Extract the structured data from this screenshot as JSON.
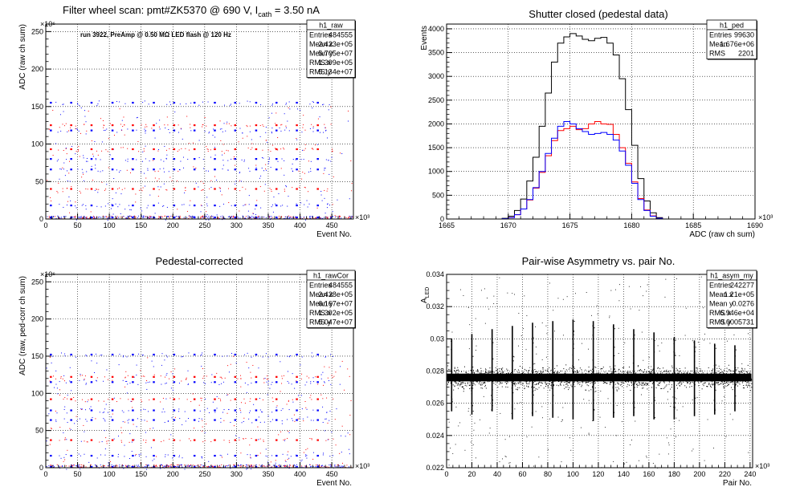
{
  "panels": [
    {
      "id": "raw",
      "title": "Filter wheel scan: pmt#ZK5370 @   690 V, I",
      "title_sub": "cath",
      "title_tail": " = 3.50 nA",
      "annotation": "run 3922, PreAmp @ 0.50 MΩ LED flash @  120 Hz",
      "xlabel": "Event No.",
      "ylabel": "ADC (raw ch sum)",
      "x_exponent": "×10³",
      "y_exponent": "×10⁶",
      "stats": {
        "name": "h1_raw",
        "rows": [
          [
            "Entries",
            "484555"
          ],
          [
            "Mean x",
            "2.423e+05"
          ],
          [
            "Mean y",
            "5.705e+07"
          ],
          [
            "RMS x",
            "1.399e+05"
          ],
          [
            "RMS y",
            "5.134e+07"
          ]
        ]
      }
    },
    {
      "id": "ped",
      "title": "Shutter closed (pedestal data)",
      "xlabel": "ADC (raw ch sum)",
      "ylabel": "Events",
      "x_exponent": "×10³",
      "stats": {
        "name": "h1_ped",
        "rows": [
          [
            "Entries",
            "99630"
          ],
          [
            "Mean",
            "1.676e+06"
          ],
          [
            "RMS",
            "2201"
          ]
        ]
      }
    },
    {
      "id": "cor",
      "title": "Pedestal-corrected",
      "xlabel": "Event No.",
      "ylabel": "ADC (raw, ped-corr ch sum)",
      "x_exponent": "×10³",
      "y_exponent": "×10⁶",
      "stats": {
        "name": "h1_rawCor",
        "rows": [
          [
            "Entries",
            "484555"
          ],
          [
            "Mean x",
            "2.428e+05"
          ],
          [
            "Mean y",
            "6.167e+07"
          ],
          [
            "RMS x",
            "1.392e+05"
          ],
          [
            "RMS y",
            "5.047e+07"
          ]
        ]
      }
    },
    {
      "id": "asym",
      "title": "Pair-wise Asymmetry vs. pair No.",
      "xlabel": "Pair No.",
      "ylabel": "A",
      "ylabel_sub": "LED",
      "x_exponent": "×10³",
      "stats": {
        "name": "h1_asym_my",
        "rows": [
          [
            "Entries",
            "242277"
          ],
          [
            "Mean x",
            "1.21e+05"
          ],
          [
            "Mean y",
            "0.0276"
          ],
          [
            "RMS x",
            "6.946e+04"
          ],
          [
            "RMS y",
            "0.0005731"
          ]
        ]
      }
    }
  ],
  "chart_data": [
    {
      "type": "scatter",
      "title": "Filter wheel scan: pmt#ZK5370 @   690 V, I_cath = 3.50 nA",
      "xlabel": "Event No.",
      "ylabel": "ADC (raw ch sum)",
      "x_scale": "x 10^3",
      "y_scale": "x 10^6",
      "xlim": [
        0,
        484
      ],
      "ylim": [
        0,
        260
      ],
      "xticks": [
        0,
        50,
        100,
        150,
        200,
        250,
        300,
        350,
        400,
        450
      ],
      "yticks": [
        0,
        50,
        100,
        150,
        200,
        250
      ],
      "grid": true,
      "bands": [
        {
          "x": [
            8,
            40,
            72,
            105,
            137,
            170,
            202,
            234,
            266,
            298,
            331,
            363,
            395,
            428
          ],
          "y": 155,
          "color": "#0000ff"
        },
        {
          "x": [
            8,
            40,
            72,
            105,
            137,
            170,
            202,
            234,
            266,
            298,
            331,
            363,
            395,
            428
          ],
          "y": 125,
          "color": "#ff0000"
        },
        {
          "x": [
            8,
            40,
            72,
            105,
            137,
            170,
            202,
            234,
            266,
            298,
            331,
            363,
            395,
            428
          ],
          "y": 118,
          "color": "#0000ff"
        },
        {
          "x": [
            8,
            40,
            72,
            105,
            137,
            170,
            202,
            234,
            266,
            298,
            331,
            363,
            395,
            428
          ],
          "y": 93,
          "color": "#ff0000"
        },
        {
          "x": [
            8,
            40,
            72,
            105,
            137,
            170,
            202,
            234,
            266,
            298,
            331,
            363,
            395,
            428
          ],
          "y": 80,
          "color": "#0000ff"
        },
        {
          "x": [
            8,
            40,
            72,
            105,
            137,
            170,
            202,
            234,
            266,
            298,
            331,
            363,
            395,
            428
          ],
          "y": 66,
          "color": "#0000ff"
        },
        {
          "x": [
            8,
            40,
            72,
            105,
            137,
            170,
            202,
            234,
            266,
            298,
            331,
            363,
            395,
            428
          ],
          "y": 40,
          "color": "#ff0000"
        },
        {
          "x": [
            8,
            40,
            72,
            105,
            137,
            170,
            202,
            234,
            266,
            298,
            331,
            363,
            395,
            428
          ],
          "y": 18,
          "color": "#0000ff"
        },
        {
          "x": [
            8,
            40,
            72,
            105,
            137,
            170,
            202,
            234,
            266,
            298,
            331,
            363,
            395,
            428
          ],
          "y": 2,
          "color": "#0000ff"
        }
      ]
    },
    {
      "type": "line",
      "title": "Shutter closed (pedestal data)",
      "xlabel": "ADC (raw ch sum)",
      "ylabel": "Events",
      "x_scale": "x 10^3",
      "xlim": [
        1665,
        1690
      ],
      "ylim": [
        0,
        4100
      ],
      "xticks": [
        1665,
        1670,
        1675,
        1680,
        1685,
        1690
      ],
      "yticks": [
        0,
        500,
        1000,
        1500,
        2000,
        2500,
        3000,
        3500,
        4000
      ],
      "grid": true,
      "x": [
        1669.0,
        1669.5,
        1670.0,
        1670.5,
        1671.0,
        1671.5,
        1672.0,
        1672.5,
        1673.0,
        1673.5,
        1674.0,
        1674.5,
        1675.0,
        1675.5,
        1676.0,
        1676.5,
        1677.0,
        1677.5,
        1678.0,
        1678.5,
        1679.0,
        1679.5,
        1680.0,
        1680.5,
        1681.0,
        1681.5,
        1682.0,
        1682.5
      ],
      "series": [
        {
          "color": "#000000",
          "values": [
            0,
            15,
            60,
            180,
            420,
            800,
            1300,
            1950,
            2650,
            3300,
            3700,
            3830,
            3900,
            3850,
            3780,
            3750,
            3800,
            3820,
            3700,
            3450,
            2950,
            2300,
            1550,
            850,
            380,
            130,
            30,
            0
          ]
        },
        {
          "color": "#ff0000",
          "values": [
            0,
            8,
            30,
            90,
            210,
            400,
            650,
            980,
            1330,
            1650,
            1860,
            1900,
            1950,
            1880,
            1900,
            2000,
            2050,
            2000,
            1990,
            1780,
            1500,
            1170,
            780,
            430,
            190,
            65,
            15,
            0
          ]
        },
        {
          "color": "#0000ff",
          "values": [
            0,
            8,
            30,
            90,
            210,
            410,
            660,
            1000,
            1380,
            1700,
            1950,
            2050,
            2000,
            1900,
            1840,
            1780,
            1800,
            1820,
            1780,
            1660,
            1430,
            1130,
            750,
            410,
            180,
            60,
            15,
            0
          ]
        }
      ]
    },
    {
      "type": "scatter",
      "title": "Pedestal-corrected",
      "xlabel": "Event No.",
      "ylabel": "ADC (raw, ped-corr ch sum)",
      "x_scale": "x 10^3",
      "y_scale": "x 10^6",
      "xlim": [
        0,
        484
      ],
      "ylim": [
        0,
        260
      ],
      "xticks": [
        0,
        50,
        100,
        150,
        200,
        250,
        300,
        350,
        400,
        450
      ],
      "yticks": [
        0,
        50,
        100,
        150,
        200,
        250
      ],
      "grid": true,
      "bands": [
        {
          "x": [
            8,
            40,
            72,
            105,
            137,
            170,
            202,
            234,
            266,
            298,
            331,
            363,
            395,
            428
          ],
          "y": 152,
          "color": "#0000ff"
        },
        {
          "x": [
            8,
            40,
            72,
            105,
            137,
            170,
            202,
            234,
            266,
            298,
            331,
            363,
            395,
            428
          ],
          "y": 122,
          "color": "#ff0000"
        },
        {
          "x": [
            8,
            40,
            72,
            105,
            137,
            170,
            202,
            234,
            266,
            298,
            331,
            363,
            395,
            428
          ],
          "y": 115,
          "color": "#0000ff"
        },
        {
          "x": [
            8,
            40,
            72,
            105,
            137,
            170,
            202,
            234,
            266,
            298,
            331,
            363,
            395,
            428
          ],
          "y": 92,
          "color": "#ff0000"
        },
        {
          "x": [
            8,
            40,
            72,
            105,
            137,
            170,
            202,
            234,
            266,
            298,
            331,
            363,
            395,
            428
          ],
          "y": 77,
          "color": "#0000ff"
        },
        {
          "x": [
            8,
            40,
            72,
            105,
            137,
            170,
            202,
            234,
            266,
            298,
            331,
            363,
            395,
            428
          ],
          "y": 64,
          "color": "#0000ff"
        },
        {
          "x": [
            8,
            40,
            72,
            105,
            137,
            170,
            202,
            234,
            266,
            298,
            331,
            363,
            395,
            428
          ],
          "y": 37,
          "color": "#ff0000"
        },
        {
          "x": [
            8,
            40,
            72,
            105,
            137,
            170,
            202,
            234,
            266,
            298,
            331,
            363,
            395,
            428
          ],
          "y": 16,
          "color": "#0000ff"
        },
        {
          "x": [
            8,
            40,
            72,
            105,
            137,
            170,
            202,
            234,
            266,
            298,
            331,
            363,
            395,
            428
          ],
          "y": 1,
          "color": "#0000ff"
        }
      ]
    },
    {
      "type": "scatter",
      "title": "Pair-wise Asymmetry vs. pair No.",
      "xlabel": "Pair No.",
      "ylabel": "A_LED",
      "x_scale": "x 10^3",
      "xlim": [
        0,
        242
      ],
      "ylim": [
        0.022,
        0.034
      ],
      "xticks": [
        0,
        20,
        40,
        60,
        80,
        100,
        120,
        140,
        160,
        180,
        200,
        220,
        240
      ],
      "yticks": [
        0.022,
        0.024,
        0.026,
        0.028,
        0.03,
        0.032,
        0.034
      ],
      "grid": true,
      "band": {
        "center": 0.0276,
        "half_width": 0.0004
      },
      "spikes": [
        {
          "x": 4,
          "top": 0.03,
          "bottom": 0.0255
        },
        {
          "x": 20,
          "top": 0.0303,
          "bottom": 0.0253
        },
        {
          "x": 36,
          "top": 0.0306,
          "bottom": 0.0255
        },
        {
          "x": 52,
          "top": 0.0308,
          "bottom": 0.025
        },
        {
          "x": 68,
          "top": 0.031,
          "bottom": 0.0252
        },
        {
          "x": 84,
          "top": 0.0311,
          "bottom": 0.0251
        },
        {
          "x": 100,
          "top": 0.0312,
          "bottom": 0.025
        },
        {
          "x": 116,
          "top": 0.0311,
          "bottom": 0.0249
        },
        {
          "x": 132,
          "top": 0.0309,
          "bottom": 0.0251
        },
        {
          "x": 148,
          "top": 0.0306,
          "bottom": 0.0252
        },
        {
          "x": 164,
          "top": 0.0304,
          "bottom": 0.025
        },
        {
          "x": 180,
          "top": 0.0301,
          "bottom": 0.025
        },
        {
          "x": 196,
          "top": 0.0299,
          "bottom": 0.0252
        },
        {
          "x": 212,
          "top": 0.0297,
          "bottom": 0.0253
        },
        {
          "x": 228,
          "top": 0.0296,
          "bottom": 0.0255
        }
      ]
    }
  ]
}
